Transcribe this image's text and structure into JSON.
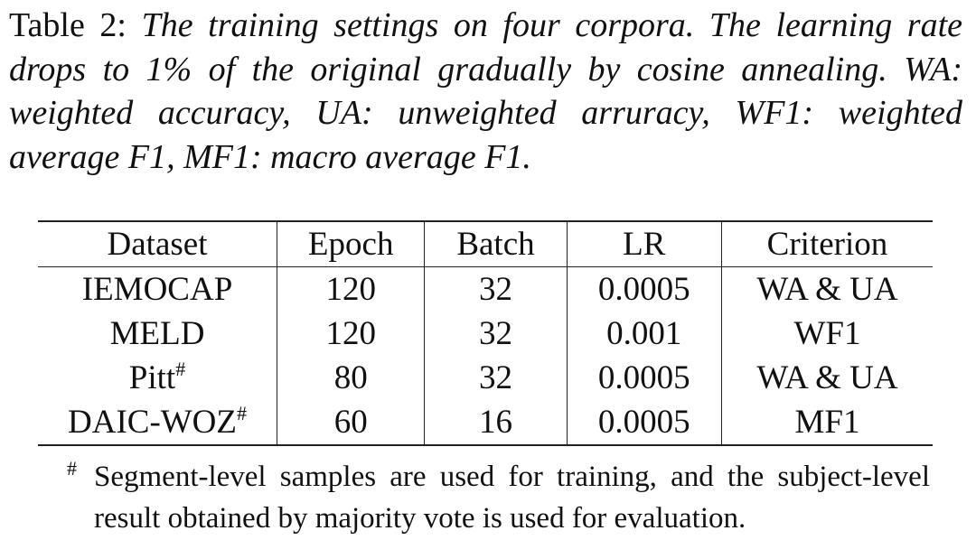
{
  "caption": {
    "label": "Table 2:",
    "text": "The training settings on four corpora. The learning rate drops to 1% of the original gradually by cosine annealing. WA: weighted accuracy, UA: unweighted arruracy, WF1: weighted average F1, MF1: macro average F1."
  },
  "table": {
    "header": [
      "Dataset",
      "Epoch",
      "Batch",
      "LR",
      "Criterion"
    ],
    "rows": [
      [
        {
          "text": "IEMOCAP"
        },
        "120",
        "32",
        "0.0005",
        "WA & UA"
      ],
      [
        {
          "text": "MELD"
        },
        "120",
        "32",
        "0.001",
        "WF1"
      ],
      [
        {
          "text": "Pitt",
          "mark": "#"
        },
        "80",
        "32",
        "0.0005",
        "WA & UA"
      ],
      [
        {
          "text": "DAIC-WOZ",
          "mark": "#"
        },
        "60",
        "16",
        "0.0005",
        "MF1"
      ]
    ]
  },
  "footnote": {
    "mark": "#",
    "text": "Segment-level samples are used for training, and the subject-level result obtained by majority vote is used for evaluation."
  }
}
